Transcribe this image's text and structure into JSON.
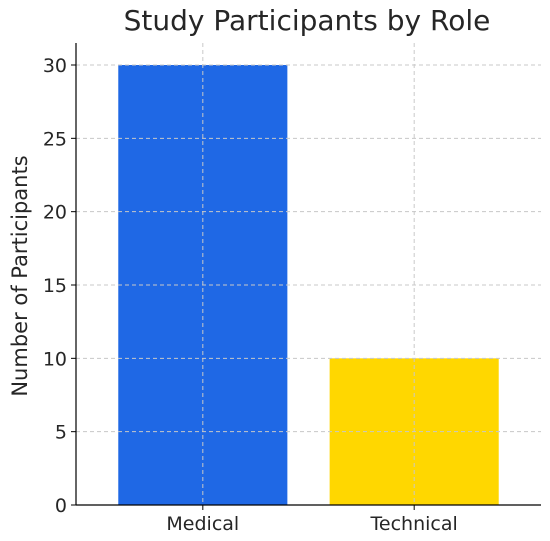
{
  "chart_data": {
    "type": "bar",
    "title": "Study Participants by Role",
    "xlabel": "",
    "ylabel": "Number of Participants",
    "categories": [
      "Medical",
      "Technical"
    ],
    "values": [
      30,
      10
    ],
    "colors": [
      "#1f68e5",
      "#ffd700"
    ],
    "ylim": [
      0,
      31.5
    ],
    "yticks": [
      0,
      5,
      10,
      15,
      20,
      25,
      30
    ],
    "grid": true,
    "legend": "none"
  }
}
